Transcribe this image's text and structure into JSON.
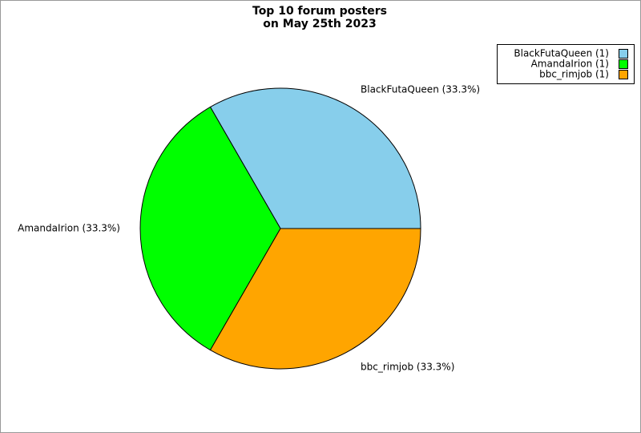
{
  "chart_data": {
    "type": "pie",
    "title": "Top 10 forum posters",
    "subtitle": "on May 25th 2023",
    "values": [
      1,
      1,
      1
    ],
    "value_labels": [
      "BlackFutaQueen (33.3%)",
      "AmandaIrion (33.3%)",
      "bbc_rimjob (33.3%)"
    ],
    "legend_labels": [
      "BlackFutaQueen (1)",
      "AmandaIrion (1)",
      "bbc_rimjob (1)"
    ],
    "colors": [
      "#87ceeb",
      "#00ff00",
      "#ffa500"
    ],
    "legend": "upper right"
  }
}
